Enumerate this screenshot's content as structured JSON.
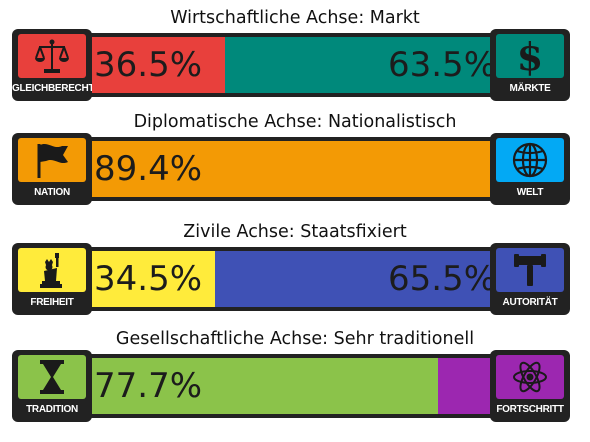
{
  "chart_data": [
    {
      "type": "bar",
      "title": "Wirtschaftliche Achse: Markt",
      "left": {
        "label": "GLEICHBERECHTIGUNG",
        "value": 36.5,
        "value_text": "36.5%",
        "color": "#e8403c",
        "icon": "scales-icon"
      },
      "right": {
        "label": "MÄRKTE",
        "value": 63.5,
        "value_text": "63.5%",
        "color": "#00897b",
        "icon": "dollar-icon"
      }
    },
    {
      "type": "bar",
      "title": "Diplomatische Achse: Nationalistisch",
      "left": {
        "label": "NATION",
        "value": 89.4,
        "value_text": "89.4%",
        "color": "#f39a05",
        "icon": "flag-icon"
      },
      "right": {
        "label": "WELT",
        "value": 10.6,
        "value_text": "",
        "color": "#03a9f4",
        "icon": "globe-icon"
      }
    },
    {
      "type": "bar",
      "title": "Zivile Achse: Staatsfixiert",
      "left": {
        "label": "FREIHEIT",
        "value": 34.5,
        "value_text": "34.5%",
        "color": "#ffeb3b",
        "icon": "statue-of-liberty-icon"
      },
      "right": {
        "label": "AUTORITÄT",
        "value": 65.5,
        "value_text": "65.5%",
        "color": "#3f51b5",
        "icon": "gavel-icon"
      }
    },
    {
      "type": "bar",
      "title": "Gesellschaftliche Achse: Sehr traditionell",
      "left": {
        "label": "TRADITION",
        "value": 77.7,
        "value_text": "77.7%",
        "color": "#8bc34a",
        "icon": "hourglass-icon"
      },
      "right": {
        "label": "FORTSCHRITT",
        "value": 22.3,
        "value_text": "",
        "color": "#9c27b0",
        "icon": "atom-icon"
      }
    }
  ]
}
